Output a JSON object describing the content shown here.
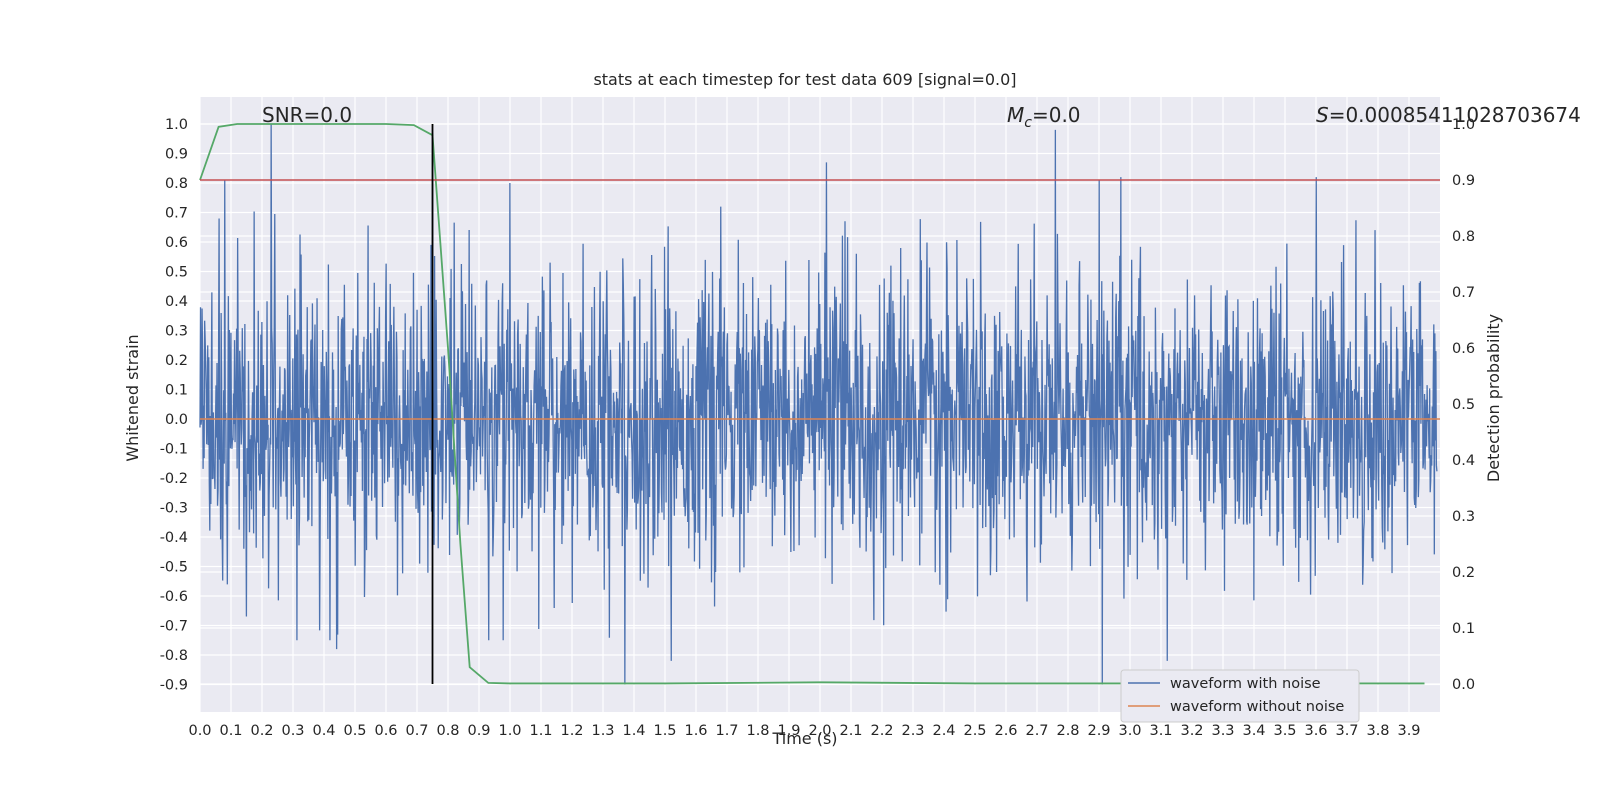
{
  "chart_data": {
    "type": "line",
    "title": "stats at each timestep for test data 609 [signal=0.0]",
    "xlabel": "Time (s)",
    "ylabel": "Whitened strain",
    "y2label": "Detection probability",
    "xlim": [
      0.0,
      4.0
    ],
    "ylim": [
      -1.0,
      1.1
    ],
    "y2lim": [
      -0.05,
      1.0
    ],
    "xticks": [
      "0.0",
      "0.1",
      "0.2",
      "0.3",
      "0.4",
      "0.5",
      "0.6",
      "0.7",
      "0.8",
      "0.9",
      "1.0",
      "1.1",
      "1.2",
      "1.3",
      "1.4",
      "1.5",
      "1.6",
      "1.7",
      "1.8",
      "1.9",
      "2.0",
      "2.1",
      "2.2",
      "2.3",
      "2.4",
      "2.5",
      "2.6",
      "2.7",
      "2.8",
      "2.9",
      "3.0",
      "3.1",
      "3.2",
      "3.3",
      "3.4",
      "3.5",
      "3.6",
      "3.7",
      "3.8",
      "3.9"
    ],
    "yticks": [
      "1.0",
      "0.9",
      "0.8",
      "0.7",
      "0.6",
      "0.5",
      "0.4",
      "0.3",
      "0.2",
      "0.1",
      "0.0",
      "-0.1",
      "-0.2",
      "-0.3",
      "-0.4",
      "-0.5",
      "-0.6",
      "-0.7",
      "-0.8",
      "-0.9"
    ],
    "y2ticks": [
      "1.0",
      "0.9",
      "0.8",
      "0.7",
      "0.6",
      "0.5",
      "0.4",
      "0.3",
      "0.2",
      "0.1",
      "0.0"
    ],
    "grid": true,
    "legend_position": "lower-right",
    "annotations": {
      "snr": "SNR=0.0",
      "mc_symbol": "M",
      "mc_sub": "c",
      "mc_value": "=0.0",
      "s_symbol": "S",
      "s_value": "=0.00085411028703674"
    },
    "series": [
      {
        "name": "waveform with noise",
        "color": "#4c72b0",
        "description_values": "dense noisy strain signal, roughly within [-0.9, 1.0], spikes at t≈0.23 (1.0), t≈0.75 (0.97), t≈2.76 (0.98), t≈2.02 (0.87)",
        "spikes": [
          [
            0.08,
            0.81
          ],
          [
            0.23,
            1.0
          ],
          [
            0.75,
            0.97
          ],
          [
            1.0,
            0.8
          ],
          [
            2.02,
            0.87
          ],
          [
            2.76,
            0.98
          ],
          [
            2.9,
            0.81
          ],
          [
            2.97,
            0.82
          ],
          [
            3.6,
            0.82
          ],
          [
            1.37,
            -0.9
          ],
          [
            2.91,
            -0.9
          ],
          [
            1.52,
            -0.82
          ],
          [
            0.44,
            -0.78
          ],
          [
            3.12,
            -0.82
          ]
        ]
      },
      {
        "name": "waveform without noise",
        "color": "#dd8452",
        "x": [
          0.0,
          4.0
        ],
        "y": [
          0.0,
          0.0
        ]
      },
      {
        "axis": "right",
        "color": "#55a868",
        "x": [
          0.0,
          0.06,
          0.12,
          0.2,
          0.3,
          0.4,
          0.5,
          0.6,
          0.69,
          0.75,
          0.8,
          0.84,
          0.87,
          0.93,
          1.0,
          1.5,
          2.0,
          2.5,
          3.0,
          3.5,
          3.95
        ],
        "y": [
          0.9,
          0.995,
          1.0,
          1.0,
          1.0,
          1.0,
          1.0,
          1.0,
          0.998,
          0.98,
          0.6,
          0.25,
          0.03,
          0.002,
          0.001,
          0.001,
          0.003,
          0.001,
          0.001,
          0.001,
          0.001
        ]
      },
      {
        "axis": "right",
        "color": "#c44e52",
        "x": [
          0.0,
          4.0
        ],
        "y": [
          0.9,
          0.9
        ]
      }
    ],
    "vertical_marker": {
      "x": 0.75,
      "color": "#000000"
    },
    "threshold_line_y2": 0.9
  },
  "legend": {
    "item_with_noise": "waveform with noise",
    "item_without_noise": "waveform without noise"
  }
}
